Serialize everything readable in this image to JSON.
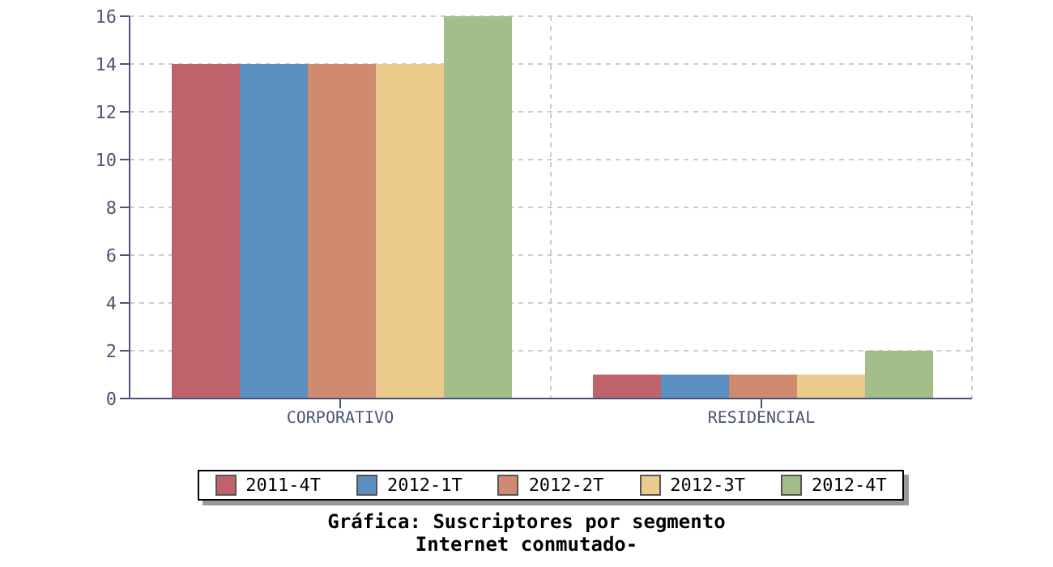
{
  "chart_data": {
    "type": "bar",
    "title": "Gráfica: Suscriptores por segmento",
    "subtitle": "Internet conmutado-",
    "categories": [
      "CORPORATIVO",
      "RESIDENCIAL"
    ],
    "series": [
      {
        "name": "2011-4T",
        "color": "#c0626b",
        "values": [
          14,
          1
        ]
      },
      {
        "name": "2012-1T",
        "color": "#5b8fbf",
        "values": [
          14,
          1
        ]
      },
      {
        "name": "2012-2T",
        "color": "#d08a70",
        "values": [
          14,
          1
        ]
      },
      {
        "name": "2012-3T",
        "color": "#ebcb8b",
        "values": [
          14,
          1
        ]
      },
      {
        "name": "2012-4T",
        "color": "#a3bd8b",
        "values": [
          16,
          2
        ]
      }
    ],
    "ylim": [
      0,
      16
    ],
    "yticks": [
      0,
      2,
      4,
      6,
      8,
      10,
      12,
      14,
      16
    ],
    "grid": true,
    "legend": "bottom"
  }
}
